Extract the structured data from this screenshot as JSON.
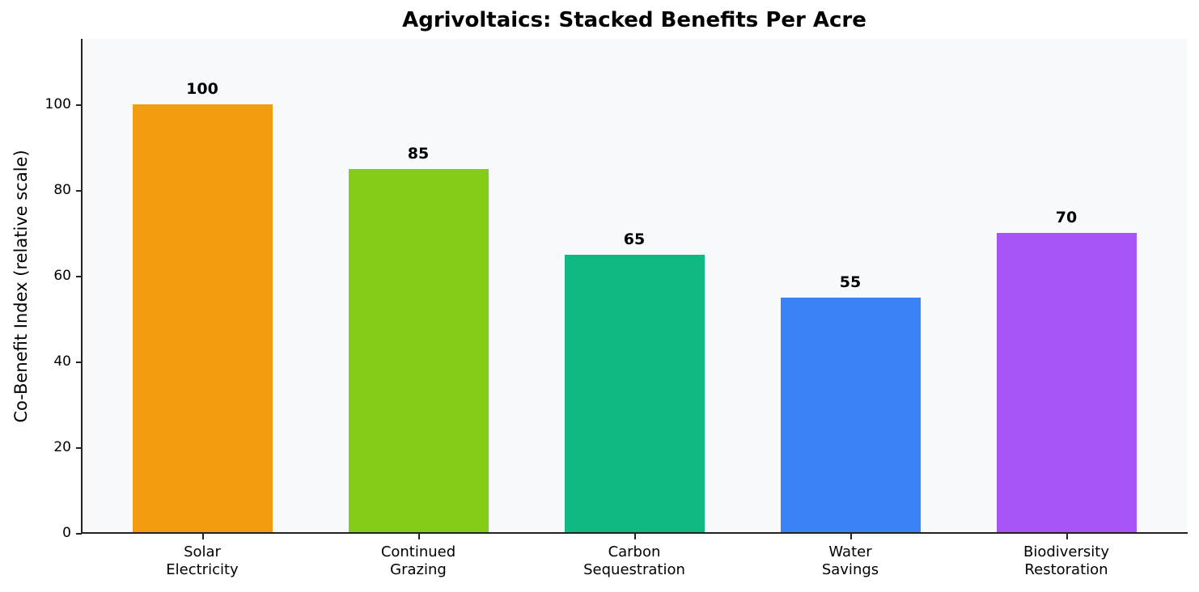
{
  "chart_data": {
    "type": "bar",
    "title": "Agrivoltaics: Stacked Benefits Per Acre",
    "xlabel": "",
    "ylabel": "Co-Benefit Index (relative scale)",
    "categories": [
      "Solar\nElectricity",
      "Continued\nGrazing",
      "Carbon\nSequestration",
      "Water\nSavings",
      "Biodiversity\nRestoration"
    ],
    "values": [
      100,
      85,
      65,
      55,
      70
    ],
    "value_labels": [
      "100",
      "85",
      "65",
      "55",
      "70"
    ],
    "colors": [
      "#f39c0f",
      "#84cc16",
      "#10b981",
      "#3b82f6",
      "#a855f7"
    ],
    "ylim": [
      0,
      115
    ],
    "yticks": [
      0,
      20,
      40,
      60,
      80,
      100
    ],
    "grid": false,
    "legend": null,
    "background": "#f8f9fb"
  }
}
